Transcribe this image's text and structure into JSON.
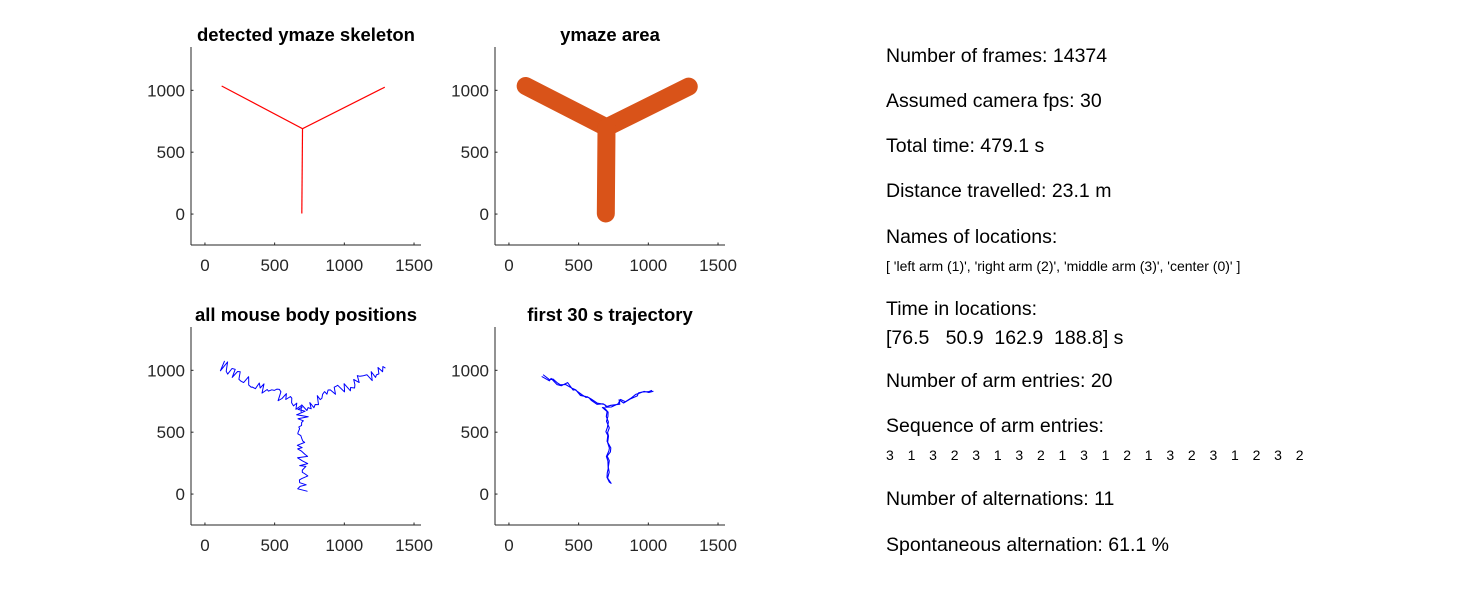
{
  "chart_data": [
    {
      "type": "line",
      "title": "detected ymaze skeleton",
      "xlim": [
        -100,
        1550
      ],
      "ylim": [
        -250,
        1350
      ],
      "xticks": [
        0,
        500,
        1000,
        1500
      ],
      "yticks": [
        0,
        500,
        1000
      ],
      "grid": false,
      "color": "#ff0000",
      "series": [
        {
          "x": [
            120,
            700
          ],
          "y": [
            1035,
            690
          ]
        },
        {
          "x": [
            1290,
            700
          ],
          "y": [
            1025,
            690
          ]
        },
        {
          "x": [
            700,
            695
          ],
          "y": [
            690,
            5
          ]
        }
      ]
    },
    {
      "type": "line",
      "title": "ymaze area",
      "xlim": [
        -100,
        1550
      ],
      "ylim": [
        -250,
        1350
      ],
      "xticks": [
        0,
        500,
        1000,
        1500
      ],
      "yticks": [
        0,
        500,
        1000
      ],
      "grid": false,
      "color": "#d95319",
      "series": [
        {
          "x": [
            120,
            700
          ],
          "y": [
            1035,
            700
          ]
        },
        {
          "x": [
            1290,
            700
          ],
          "y": [
            1030,
            700
          ]
        },
        {
          "x": [
            700,
            695
          ],
          "y": [
            700,
            5
          ]
        }
      ]
    },
    {
      "type": "scatter",
      "title": "all mouse body positions",
      "xlim": [
        -100,
        1550
      ],
      "ylim": [
        -250,
        1350
      ],
      "xticks": [
        0,
        500,
        1000,
        1500
      ],
      "yticks": [
        0,
        500,
        1000
      ],
      "grid": false,
      "color": "#0000ff",
      "series": [
        {
          "x": [
            120,
            700
          ],
          "y": [
            1040,
            700
          ]
        },
        {
          "x": [
            1295,
            700
          ],
          "y": [
            1020,
            700
          ]
        },
        {
          "x": [
            700,
            698
          ],
          "y": [
            700,
            20
          ]
        }
      ]
    },
    {
      "type": "line",
      "title": "first 30 s trajectory",
      "xlim": [
        -100,
        1550
      ],
      "ylim": [
        -250,
        1350
      ],
      "xticks": [
        0,
        500,
        1000,
        1500
      ],
      "yticks": [
        0,
        500,
        1000
      ],
      "grid": false,
      "color": "#0000ff",
      "series": [
        {
          "x": [
            250,
            700
          ],
          "y": [
            955,
            700
          ]
        },
        {
          "x": [
            1040,
            700
          ],
          "y": [
            850,
            700
          ]
        },
        {
          "x": [
            700,
            710
          ],
          "y": [
            700,
            100
          ]
        }
      ]
    }
  ],
  "stats": {
    "frames": "Number of frames: 14374",
    "fps": "Assumed camera fps: 30",
    "total_time": "Total time: 479.1 s",
    "distance": "Distance travelled: 23.1 m",
    "names_label": "Names of locations:",
    "names_value": "[ 'left arm (1)', 'right arm (2)', 'middle arm (3)', 'center (0)' ]",
    "time_label": "Time in locations:",
    "time_value": "[76.5   50.9  162.9  188.8] s",
    "arm_entries": "Number of arm entries: 20",
    "sequence_label": "Sequence of arm entries:",
    "sequence_value": "3  1  3  2  3  1  3  2  1  3  1  2  1  3  2  3  1  2  3  2",
    "alternations": "Number of alternations: 11",
    "spontaneous": "Spontaneous alternation: 61.1 %"
  }
}
